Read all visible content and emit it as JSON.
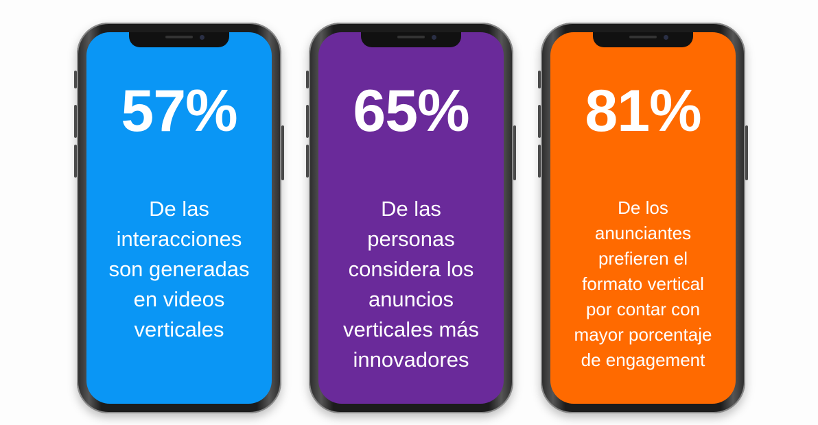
{
  "colors": {
    "phone_1_screen": "#0a96f5",
    "phone_2_screen": "#6a2a9a",
    "phone_3_screen": "#ff6a00"
  },
  "phones": [
    {
      "percent": "57%",
      "lines": [
        "De las",
        "interacciones",
        "son generadas",
        "en videos",
        "verticales"
      ]
    },
    {
      "percent": "65%",
      "lines": [
        "De las",
        "personas",
        "considera los",
        "anuncios",
        "verticales más",
        "innovadores"
      ]
    },
    {
      "percent": "81%",
      "lines": [
        "De los",
        "anunciantes",
        "prefieren el",
        "formato vertical",
        "por contar con",
        "mayor porcentaje",
        "de engagement"
      ]
    }
  ]
}
